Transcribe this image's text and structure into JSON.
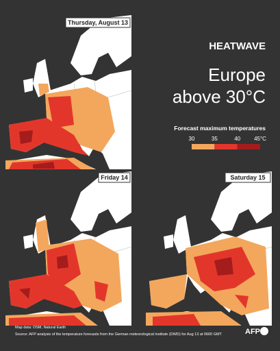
{
  "header": {
    "kicker": "HEATWAVE",
    "title_lines": [
      "Europe",
      "above 30°C"
    ]
  },
  "panels": [
    {
      "label": "Thursday, August 13"
    },
    {
      "label": "Friday 14"
    },
    {
      "label": "Saturday 15"
    }
  ],
  "legend": {
    "title": "Forecast maximum temperatures",
    "ticks": [
      "30",
      "35",
      "40",
      "45°C"
    ],
    "colors": [
      "#f3a75c",
      "#e3362b",
      "#a51c1c"
    ]
  },
  "footer": {
    "credit": "Map data: OSM, Natural Earth",
    "source": "Source: AFP analysis of the temperature forecasts from the German meteorological institute (DWD) for Aug 13 at 0600 GMT",
    "logo": "AFP"
  }
}
